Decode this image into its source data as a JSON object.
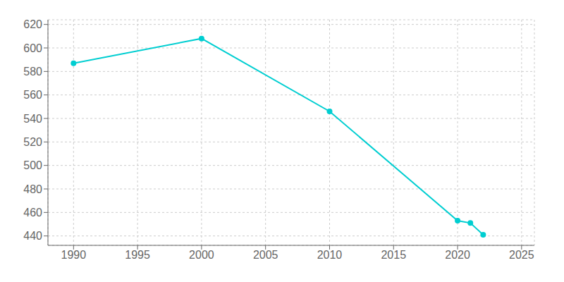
{
  "chart_data": {
    "type": "line",
    "x": [
      1990,
      2000,
      2010,
      2020,
      2021,
      2022
    ],
    "values": [
      587,
      608,
      546,
      453,
      451,
      441
    ],
    "color": "#00CED1",
    "xlim": [
      1988,
      2026
    ],
    "ylim": [
      432,
      624
    ],
    "xticks": [
      1990,
      1995,
      2000,
      2005,
      2010,
      2015,
      2020,
      2025
    ],
    "yticks": [
      440,
      460,
      480,
      500,
      520,
      540,
      560,
      580,
      600,
      620
    ],
    "grid": true,
    "marker": "circle"
  }
}
